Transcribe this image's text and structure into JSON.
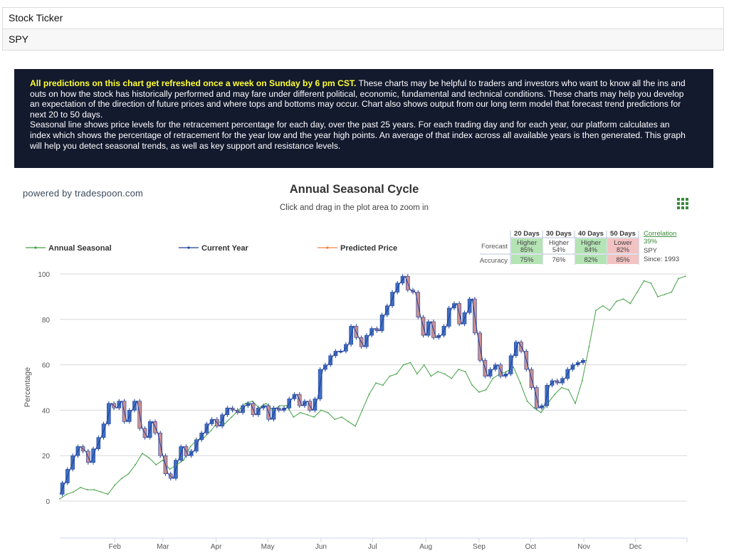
{
  "ticker": {
    "label": "Stock Ticker",
    "value": "SPY"
  },
  "banner": {
    "highlight": "All predictions on this chart get refreshed once a week on Sunday by 6 pm CST.",
    "text1": " These charts may be helpful to traders and investors who want to know all the ins and outs on how the stock has historically performed and may fare under different political, economic, fundamental and technical conditions. These charts may help you develop an expectation of the direction of future prices and where tops and bottoms may occur. Chart also shows output from our long term model that forecast trend predictions for next 20 to 50 days.",
    "text2": "Seasonal line shows price levels for the retracement percentage for each day, over the past 25 years. For each trading day and for each year, our platform calculates an index which shows the percentage of retracement for the year low and the year high points. An average of that index across all available years is then generated. This graph will help you detect seasonal trends, as well as key support and resistance levels."
  },
  "powered_by": "powered by tradespoon.com",
  "forecast_table": {
    "columns": [
      "20 Days",
      "30 Days",
      "40 Days",
      "50 Days"
    ],
    "forecast_label": "Forecast",
    "accuracy_label": "Accuracy",
    "forecast": [
      {
        "dir": "Higher",
        "pct": "85%",
        "color": "#b4e3b4"
      },
      {
        "dir": "Higher",
        "pct": "54%",
        "color": "#ffffff"
      },
      {
        "dir": "Higher",
        "pct": "84%",
        "color": "#b4e3b4"
      },
      {
        "dir": "Lower",
        "pct": "82%",
        "color": "#f3c2c2"
      }
    ],
    "accuracy": [
      {
        "pct": "75%",
        "color": "#b4e3b4"
      },
      {
        "pct": "76%",
        "color": "#ffffff"
      },
      {
        "pct": "82%",
        "color": "#b4e3b4"
      },
      {
        "pct": "85%",
        "color": "#f3c2c2"
      }
    ],
    "correlation_label": "Correlation",
    "correlation_value": "39%",
    "symbol": "SPY",
    "since": "Since: 1993"
  },
  "colors": {
    "seasonal": "#44a044",
    "current": "#1d3f9e",
    "predicted": "#f08040",
    "candle_up": "#3f6fbf",
    "candle_down": "#cc8f8f",
    "grid": "#d8d8d8",
    "accent_green": "#3a8a3a"
  },
  "chart_data": {
    "type": "line",
    "title": "Annual Seasonal Cycle",
    "subtitle": "Click and drag in the plot area to zoom in",
    "ylabel": "Percentage",
    "ylim": [
      0,
      100
    ],
    "yticks": [
      0,
      20,
      40,
      60,
      80,
      100
    ],
    "x_range_days": [
      0,
      365
    ],
    "months": [
      {
        "label": "Feb",
        "day": 32
      },
      {
        "label": "Mar",
        "day": 60
      },
      {
        "label": "Apr",
        "day": 91
      },
      {
        "label": "May",
        "day": 121
      },
      {
        "label": "Jun",
        "day": 152
      },
      {
        "label": "Jul",
        "day": 182
      },
      {
        "label": "Aug",
        "day": 213
      },
      {
        "label": "Sep",
        "day": 244
      },
      {
        "label": "Oct",
        "day": 274
      },
      {
        "label": "Nov",
        "day": 305
      },
      {
        "label": "Dec",
        "day": 335
      }
    ],
    "legend": [
      "Annual Seasonal",
      "Current Year",
      "Predicted Price"
    ],
    "seasonal": {
      "x": [
        0,
        4,
        8,
        12,
        16,
        20,
        24,
        28,
        32,
        36,
        40,
        44,
        48,
        52,
        56,
        60,
        64,
        68,
        72,
        76,
        80,
        84,
        88,
        92,
        96,
        100,
        104,
        108,
        112,
        116,
        120,
        124,
        128,
        132,
        136,
        140,
        144,
        148,
        152,
        156,
        160,
        164,
        168,
        172,
        176,
        180,
        184,
        188,
        192,
        196,
        200,
        204,
        208,
        212,
        216,
        220,
        224,
        228,
        232,
        236,
        240,
        244,
        248,
        252,
        256,
        260,
        264,
        268,
        272,
        276,
        280,
        284,
        288,
        292,
        296,
        300,
        304,
        308,
        312,
        316,
        320,
        324,
        328,
        332,
        336,
        340,
        344,
        348,
        352,
        356,
        360,
        364
      ],
      "y": [
        1,
        3,
        4,
        6,
        5,
        5,
        4,
        3,
        7,
        10,
        12,
        16,
        21,
        19,
        16,
        18,
        14,
        16,
        18,
        24,
        27,
        28,
        31,
        35,
        34,
        37,
        40,
        43,
        44,
        41,
        43,
        40,
        42,
        42,
        37,
        39,
        38,
        37,
        40,
        39,
        36,
        37,
        35,
        33,
        40,
        47,
        52,
        51,
        55,
        56,
        60,
        61,
        56,
        60,
        55,
        57,
        56,
        54,
        58,
        57,
        51,
        48,
        49,
        54,
        56,
        57,
        59,
        52,
        44,
        41,
        39,
        43,
        47,
        50,
        49,
        43,
        53,
        68,
        84,
        86,
        84,
        88,
        89,
        87,
        92,
        97,
        96,
        90,
        91,
        92,
        98,
        99
      ]
    },
    "current_year": {
      "x": [
        0,
        3,
        6,
        9,
        12,
        15,
        18,
        21,
        24,
        27,
        30,
        33,
        36,
        39,
        42,
        45,
        48,
        51,
        54,
        57,
        60,
        63,
        66,
        69,
        72,
        75,
        78,
        81,
        84,
        87,
        90,
        93,
        96,
        99,
        102,
        105,
        108,
        111,
        114,
        117,
        120,
        123,
        126,
        129,
        132,
        135,
        138,
        141,
        144,
        147,
        150,
        153,
        156,
        159,
        162,
        165,
        168,
        171,
        174,
        177,
        180,
        183,
        186,
        189,
        192,
        195,
        198,
        201,
        204,
        207,
        210,
        213,
        216,
        219,
        222,
        225,
        228,
        231,
        234,
        237,
        240,
        243,
        246,
        249,
        252,
        255,
        258,
        261,
        264,
        267,
        270,
        273,
        276,
        279,
        282,
        285,
        288,
        291,
        294,
        297,
        300,
        303,
        306
      ],
      "y": [
        3,
        8,
        14,
        20,
        24,
        22,
        17,
        23,
        28,
        34,
        43,
        41,
        44,
        35,
        40,
        44,
        32,
        28,
        35,
        30,
        20,
        12,
        10,
        18,
        24,
        20,
        22,
        27,
        30,
        34,
        36,
        33,
        38,
        41,
        40,
        39,
        42,
        43,
        38,
        41,
        42,
        36,
        41,
        40,
        41,
        45,
        47,
        42,
        44,
        40,
        45,
        58,
        60,
        64,
        66,
        66,
        69,
        77,
        72,
        68,
        73,
        76,
        75,
        82,
        86,
        92,
        96,
        99,
        93,
        92,
        81,
        73,
        79,
        72,
        73,
        77,
        85,
        87,
        78,
        83,
        89,
        74,
        62,
        55,
        58,
        60,
        55,
        56,
        64,
        70,
        66,
        58,
        50,
        41,
        42,
        51,
        53,
        52,
        54,
        58,
        60,
        61,
        62
      ]
    },
    "predicted": {
      "x": [],
      "y": []
    }
  }
}
